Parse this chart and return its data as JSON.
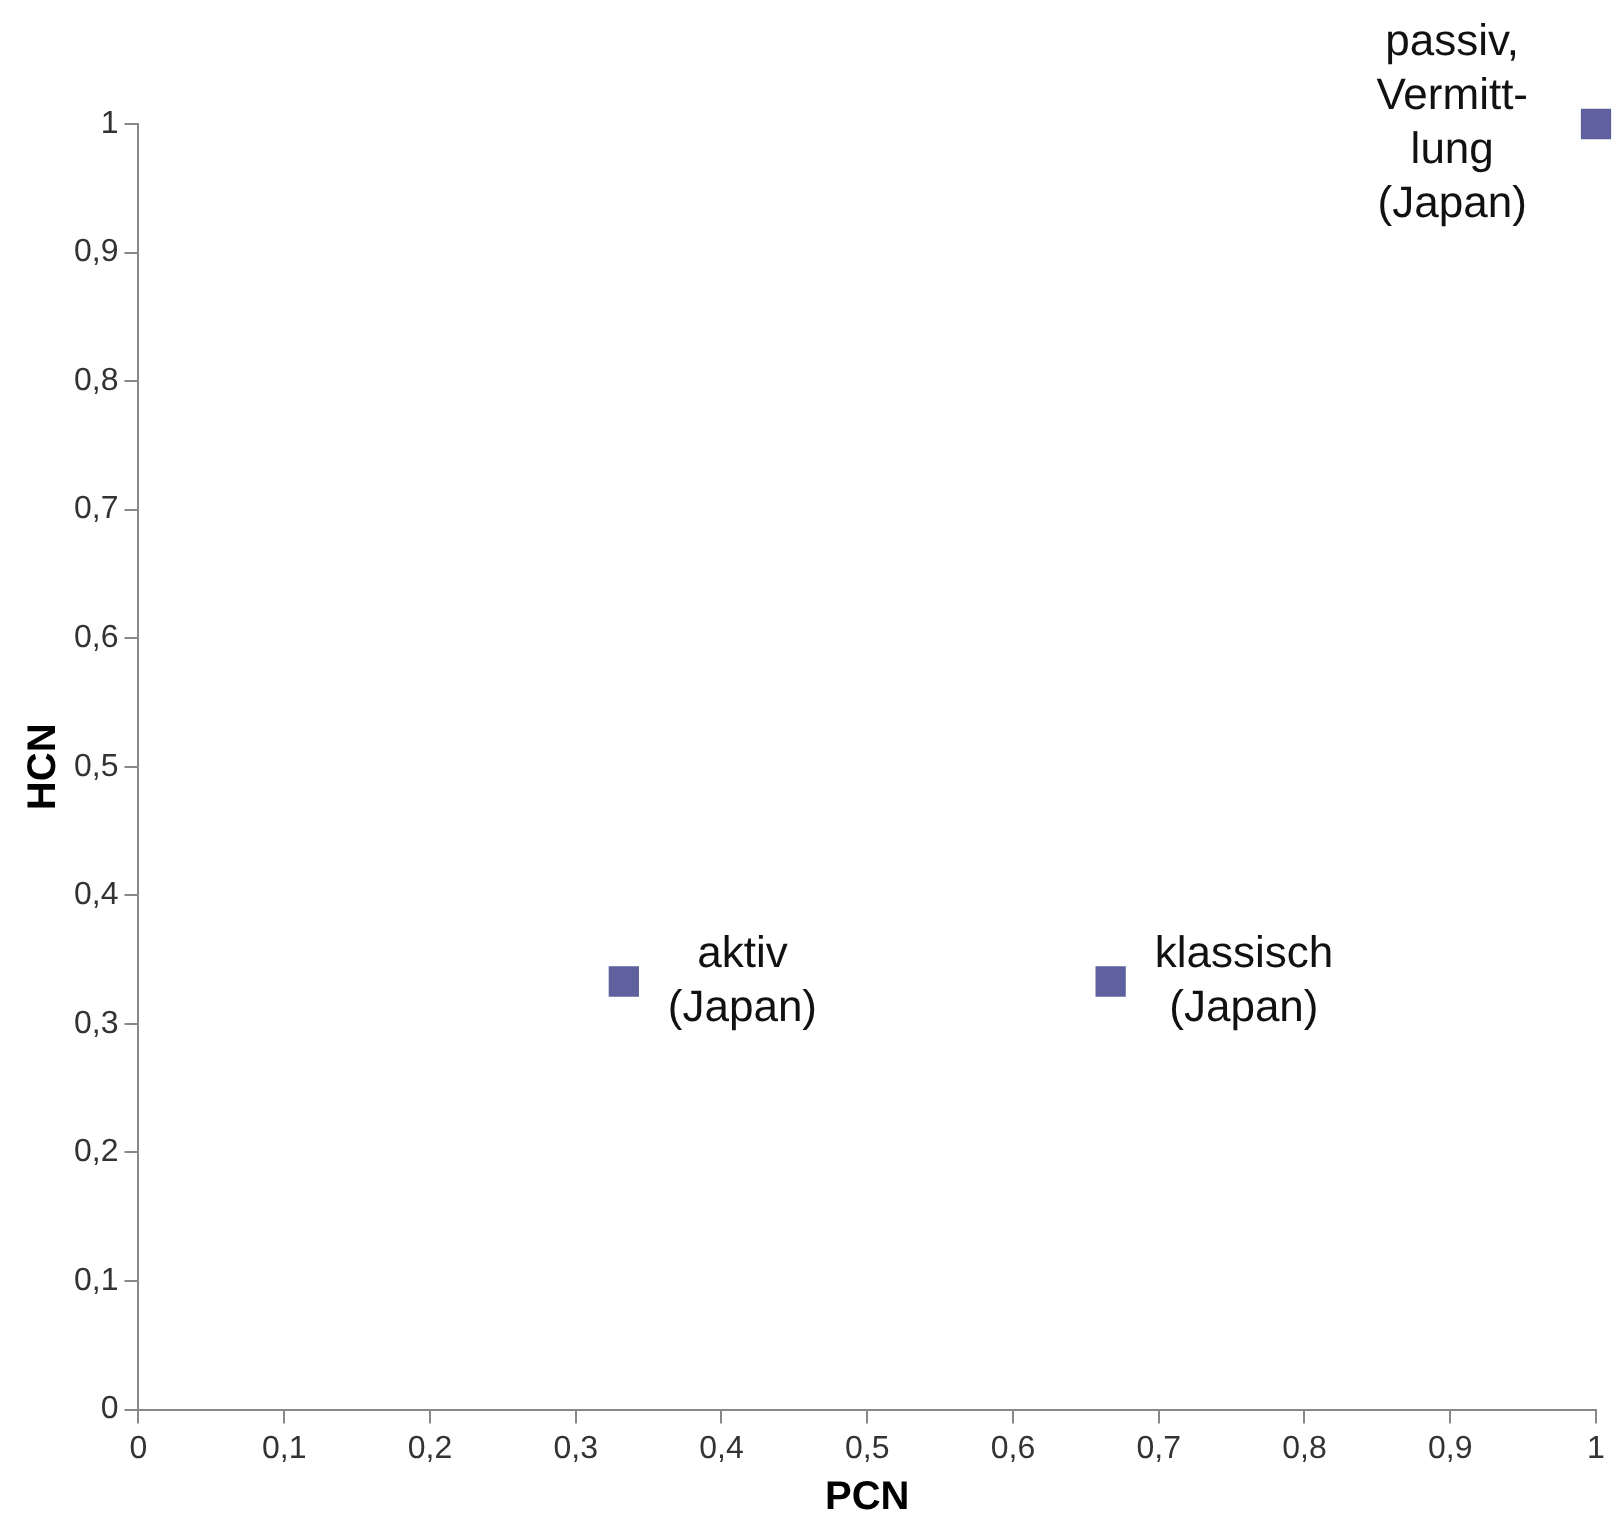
{
  "chart_data": {
    "type": "scatter",
    "xlabel": "PCN",
    "ylabel": "HCN",
    "x": [
      0.333,
      0.667,
      1
    ],
    "series": [
      {
        "color": "#5f619e",
        "values": [
          0.333,
          0.333,
          1
        ]
      }
    ],
    "marker": "square",
    "grid": false,
    "legend": false,
    "xlim": [
      0,
      1
    ],
    "ylim": [
      0,
      1
    ],
    "xticks": [
      0,
      {
        "value": 0.1,
        "label": "0,1"
      },
      {
        "value": 0.2,
        "label": "0,2"
      },
      {
        "value": 0.3,
        "label": "0,3"
      },
      {
        "value": 0.4,
        "label": "0,4"
      },
      {
        "value": 0.5,
        "label": "0,5"
      },
      {
        "value": 0.6,
        "label": "0,6"
      },
      {
        "value": 0.7,
        "label": "0,7"
      },
      {
        "value": 0.8,
        "label": "0,8"
      },
      {
        "value": 0.9,
        "label": "0,9"
      },
      1
    ],
    "yticks": [
      0,
      {
        "value": 0.1,
        "label": "0,1"
      },
      {
        "value": 0.2,
        "label": "0,2"
      },
      {
        "value": 0.3,
        "label": "0,3"
      },
      {
        "value": 0.4,
        "label": "0,4"
      },
      {
        "value": 0.5,
        "label": "0,5"
      },
      {
        "value": 0.6,
        "label": "0,6"
      },
      {
        "value": 0.7,
        "label": "0,7"
      },
      {
        "value": 0.8,
        "label": "0,8"
      },
      {
        "value": 0.9,
        "label": "0,9"
      },
      1
    ],
    "annotations": [
      {
        "text": "aktiv\n(Japan)",
        "x": 0.333,
        "y": 0.333
      },
      {
        "text": "klassisch\n(Japan)",
        "x": 0.667,
        "y": 0.333
      },
      {
        "text": "passiv,\nVermitt-\nlung\n(Japan)",
        "x": 1,
        "y": 1
      }
    ]
  }
}
